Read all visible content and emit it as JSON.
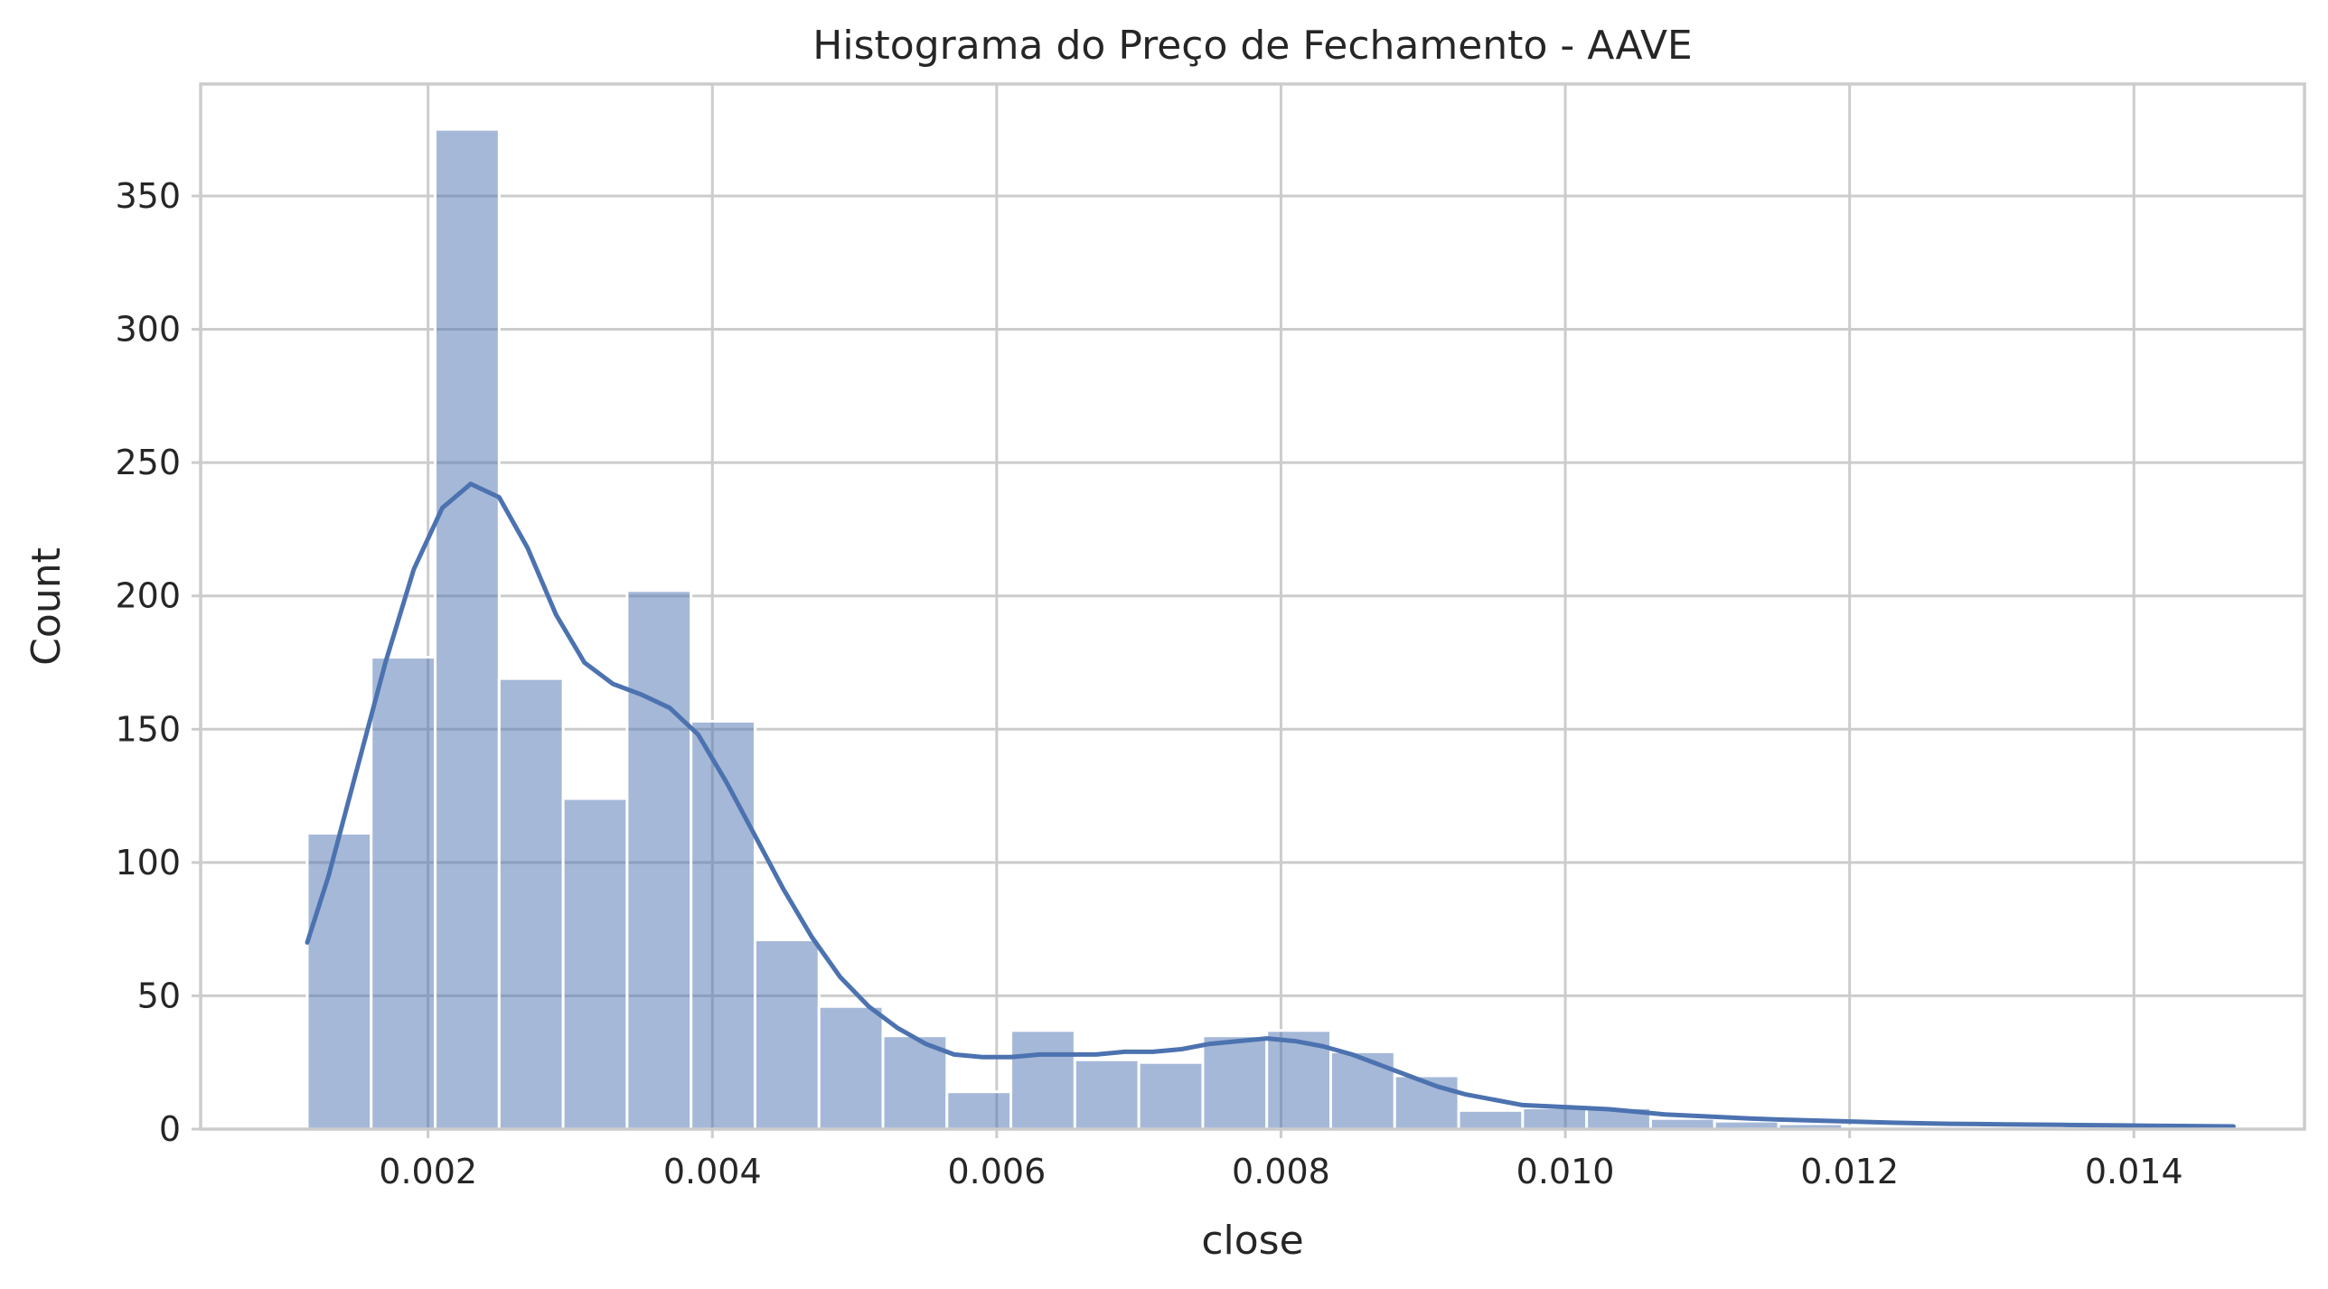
{
  "chart_data": {
    "type": "bar",
    "title": "Histograma do Preço de Fechamento - AAVE",
    "xlabel": "close",
    "ylabel": "Count",
    "xlim": [
      0.0004,
      0.0152
    ],
    "ylim": [
      0,
      392
    ],
    "xticks": [
      0.002,
      0.004,
      0.006,
      0.008,
      0.01,
      0.012,
      0.014
    ],
    "xtick_labels": [
      "0.002",
      "0.004",
      "0.006",
      "0.008",
      "0.010",
      "0.012",
      "0.014"
    ],
    "yticks": [
      0,
      50,
      100,
      150,
      200,
      250,
      300,
      350
    ],
    "ytick_labels": [
      "0",
      "50",
      "100",
      "150",
      "200",
      "250",
      "300",
      "350"
    ],
    "grid": true,
    "bin_start": 0.00115,
    "bin_width": 0.00045,
    "values": [
      111,
      177,
      375,
      169,
      124,
      202,
      153,
      71,
      46,
      35,
      14,
      37,
      26,
      25,
      35,
      37,
      29,
      20,
      7,
      8,
      8,
      4,
      3,
      2,
      1,
      1,
      1,
      1,
      1,
      1
    ],
    "kde": {
      "x": [
        0.00115,
        0.0013,
        0.0015,
        0.0017,
        0.0019,
        0.0021,
        0.0023,
        0.0025,
        0.0027,
        0.0029,
        0.0031,
        0.0033,
        0.0035,
        0.0037,
        0.0039,
        0.0041,
        0.0043,
        0.0045,
        0.0047,
        0.0049,
        0.0051,
        0.0053,
        0.0055,
        0.0057,
        0.0059,
        0.0061,
        0.0063,
        0.0065,
        0.0067,
        0.0069,
        0.0071,
        0.0073,
        0.0075,
        0.0077,
        0.0079,
        0.0081,
        0.0083,
        0.0085,
        0.0087,
        0.0089,
        0.0091,
        0.0093,
        0.0095,
        0.0097,
        0.0099,
        0.0101,
        0.0103,
        0.0105,
        0.0107,
        0.0109,
        0.0111,
        0.0113,
        0.0115,
        0.0117,
        0.0119,
        0.0121,
        0.0123,
        0.0125,
        0.0127,
        0.0129,
        0.0131,
        0.0133,
        0.0135,
        0.0137,
        0.0139,
        0.0141,
        0.0143,
        0.0145,
        0.0147
      ],
      "y": [
        70,
        95,
        135,
        175,
        210,
        233,
        242,
        237,
        218,
        193,
        175,
        167,
        163,
        158,
        148,
        130,
        110,
        90,
        72,
        57,
        46,
        38,
        32,
        28,
        27,
        27,
        28,
        28,
        28,
        29,
        29,
        30,
        32,
        33,
        34,
        33,
        31,
        28,
        24,
        20,
        16,
        13,
        11,
        9,
        8.5,
        8,
        7.5,
        6.5,
        5.5,
        5,
        4.5,
        4,
        3.6,
        3.3,
        3,
        2.7,
        2.4,
        2.2,
        2,
        1.9,
        1.8,
        1.7,
        1.6,
        1.5,
        1.4,
        1.3,
        1.2,
        1.1,
        1
      ]
    }
  }
}
